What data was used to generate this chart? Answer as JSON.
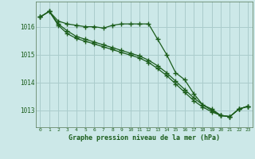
{
  "background_color": "#cce8e8",
  "grid_color": "#aacccc",
  "line_color": "#1a5c1a",
  "title": "Graphe pression niveau de la mer (hPa)",
  "ylabel_ticks": [
    1013,
    1014,
    1015,
    1016
  ],
  "xlim": [
    -0.5,
    23.5
  ],
  "ylim": [
    1012.4,
    1016.9
  ],
  "series": [
    {
      "x": [
        0,
        1,
        2,
        3,
        4,
        5,
        6,
        7,
        8,
        9,
        10,
        11,
        12,
        13,
        14,
        15,
        16,
        17,
        18,
        19,
        20,
        21,
        22,
        23
      ],
      "y": [
        1016.35,
        1016.55,
        1016.2,
        1016.1,
        1016.05,
        1016.0,
        1016.0,
        1015.95,
        1016.05,
        1016.1,
        1016.1,
        1016.1,
        1016.1,
        1015.55,
        1015.0,
        1014.35,
        1014.1,
        1013.6,
        1013.2,
        1013.05,
        1012.82,
        1012.78,
        1013.05,
        1013.15
      ]
    },
    {
      "x": [
        0,
        1,
        2,
        3,
        4,
        5,
        6,
        7,
        8,
        9,
        10,
        11,
        12,
        13,
        14,
        15,
        16,
        17,
        18,
        19,
        20,
        21,
        22,
        23
      ],
      "y": [
        1016.35,
        1016.55,
        1016.1,
        1015.85,
        1015.65,
        1015.55,
        1015.45,
        1015.35,
        1015.25,
        1015.15,
        1015.05,
        1014.95,
        1014.8,
        1014.6,
        1014.35,
        1014.05,
        1013.75,
        1013.45,
        1013.2,
        1013.0,
        1012.82,
        1012.78,
        1013.05,
        1013.15
      ]
    },
    {
      "x": [
        0,
        1,
        2,
        3,
        4,
        5,
        6,
        7,
        8,
        9,
        10,
        11,
        12,
        13,
        14,
        15,
        16,
        17,
        18,
        19,
        20,
        21,
        22,
        23
      ],
      "y": [
        1016.35,
        1016.55,
        1016.05,
        1015.75,
        1015.58,
        1015.48,
        1015.38,
        1015.28,
        1015.18,
        1015.08,
        1014.98,
        1014.88,
        1014.72,
        1014.5,
        1014.25,
        1013.95,
        1013.65,
        1013.35,
        1013.12,
        1012.95,
        1012.82,
        1012.78,
        1013.05,
        1013.15
      ]
    }
  ]
}
